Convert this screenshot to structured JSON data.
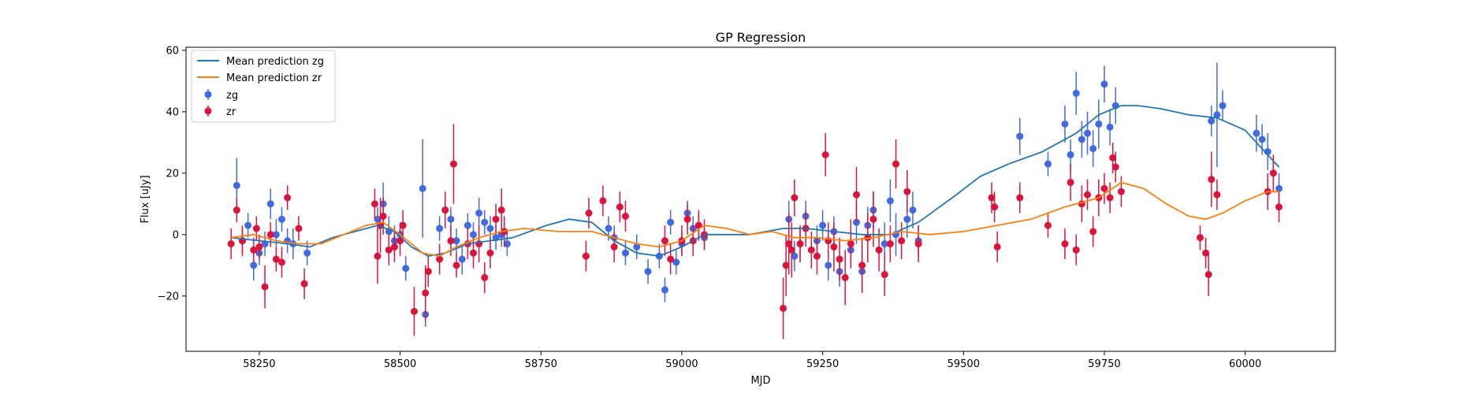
{
  "chart_data": {
    "type": "scatter",
    "title": "GP Regression",
    "xlabel": "MJD",
    "ylabel": "Flux [uJy]",
    "xlim": [
      58120,
      60160
    ],
    "ylim": [
      -38,
      61
    ],
    "xticks": [
      58250,
      58500,
      58750,
      59000,
      59250,
      59500,
      59750,
      60000
    ],
    "yticks": [
      -20,
      0,
      20,
      40,
      60
    ],
    "grid": false,
    "legend_position": "top-left",
    "series": [
      {
        "name": "Mean prediction zg",
        "kind": "line",
        "color": "#1f77b4",
        "x": [
          58200,
          58250,
          58300,
          58340,
          58380,
          58420,
          58460,
          58490,
          58520,
          58550,
          58580,
          58620,
          58660,
          58700,
          58760,
          58800,
          58840,
          58880,
          58920,
          58960,
          59000,
          59040,
          59080,
          59120,
          59180,
          59220,
          59270,
          59320,
          59370,
          59420,
          59480,
          59530,
          59580,
          59640,
          59700,
          59740,
          59780,
          59810,
          59850,
          59900,
          59950,
          60000,
          60040,
          60060
        ],
        "y": [
          -1,
          -2,
          -3,
          -4,
          -1,
          1,
          3,
          1,
          -4,
          -7,
          -6,
          -3,
          -2,
          -1,
          3,
          5,
          4,
          -2,
          -6,
          -7,
          -4,
          0,
          0,
          0,
          2,
          2,
          1,
          0,
          0,
          4,
          12,
          19,
          23,
          27,
          33,
          39,
          42,
          42,
          41,
          39,
          38,
          34,
          26,
          22
        ]
      },
      {
        "name": "Mean prediction zr",
        "kind": "line",
        "color": "#ff7f0e",
        "x": [
          58200,
          58240,
          58280,
          58320,
          58360,
          58400,
          58440,
          58470,
          58500,
          58540,
          58570,
          58600,
          58640,
          58680,
          58720,
          58780,
          58840,
          58880,
          58920,
          58960,
          59000,
          59040,
          59080,
          59120,
          59160,
          59200,
          59240,
          59290,
          59340,
          59390,
          59440,
          59500,
          59560,
          59620,
          59680,
          59740,
          59780,
          59820,
          59860,
          59900,
          59930,
          59960,
          60000,
          60040,
          60060
        ],
        "y": [
          -1,
          0,
          -2,
          -3,
          -3,
          0,
          3,
          4,
          0,
          -6,
          -7,
          -4,
          -1,
          1,
          2,
          1,
          1,
          -1,
          -3,
          -4,
          -2,
          3,
          2,
          0,
          1,
          -1,
          -1,
          -2,
          -1,
          1,
          0,
          1,
          3,
          5,
          9,
          12,
          17,
          15,
          10,
          6,
          5,
          7,
          11,
          14,
          14
        ]
      },
      {
        "name": "zg",
        "kind": "errorbar",
        "color": "#4169e1",
        "x": [
          58210,
          58220,
          58230,
          58240,
          58250,
          58260,
          58270,
          58280,
          58290,
          58300,
          58310,
          58335,
          58460,
          58470,
          58480,
          58490,
          58500,
          58510,
          58540,
          58545,
          58570,
          58580,
          58590,
          58600,
          58610,
          58620,
          58630,
          58640,
          58650,
          58660,
          58670,
          58680,
          58690,
          58870,
          58880,
          58900,
          58920,
          58940,
          58960,
          58970,
          58980,
          58990,
          59000,
          59010,
          59020,
          59030,
          59040,
          59190,
          59200,
          59210,
          59220,
          59240,
          59250,
          59260,
          59270,
          59280,
          59300,
          59310,
          59320,
          59330,
          59340,
          59360,
          59370,
          59380,
          59400,
          59410,
          59420,
          59600,
          59650,
          59680,
          59690,
          59700,
          59710,
          59720,
          59730,
          59740,
          59750,
          59760,
          59770,
          59940,
          59950,
          59960,
          60020,
          60030,
          60040,
          60050,
          60060
        ],
        "y": [
          16,
          -2,
          3,
          -10,
          -6,
          -3,
          10,
          0,
          5,
          -2,
          -3,
          -6,
          5,
          10,
          1,
          -2,
          0,
          -11,
          15,
          -26,
          2,
          8,
          5,
          -2,
          -8,
          3,
          0,
          7,
          4,
          2,
          -1,
          0,
          -3,
          2,
          -1,
          -6,
          -4,
          -12,
          -7,
          -18,
          4,
          -9,
          -3,
          7,
          2,
          3,
          -1,
          5,
          -7,
          -3,
          6,
          -2,
          3,
          -10,
          1,
          -12,
          -5,
          4,
          -12,
          3,
          8,
          -3,
          11,
          0,
          5,
          8,
          -2,
          32,
          23,
          36,
          26,
          46,
          31,
          33,
          28,
          36,
          49,
          35,
          42,
          37,
          39,
          42,
          33,
          31,
          27,
          20,
          15
        ],
        "yerr": [
          9,
          4,
          4,
          5,
          4,
          4,
          5,
          5,
          4,
          4,
          5,
          4,
          4,
          7,
          5,
          5,
          4,
          4,
          16,
          4,
          4,
          5,
          4,
          4,
          5,
          4,
          4,
          5,
          4,
          4,
          4,
          4,
          4,
          4,
          4,
          4,
          4,
          4,
          4,
          4,
          4,
          4,
          4,
          4,
          4,
          4,
          4,
          6,
          5,
          5,
          5,
          5,
          5,
          5,
          5,
          5,
          5,
          7,
          6,
          6,
          6,
          7,
          7,
          7,
          6,
          6,
          5,
          6,
          4,
          6,
          5,
          7,
          6,
          7,
          6,
          8,
          6,
          6,
          6,
          5,
          17,
          5,
          6,
          5,
          6,
          5,
          5
        ]
      },
      {
        "name": "zr",
        "kind": "errorbar",
        "color": "#dc143c",
        "x": [
          58200,
          58210,
          58220,
          58240,
          58245,
          58250,
          58260,
          58270,
          58280,
          58290,
          58300,
          58320,
          58330,
          58455,
          58460,
          58465,
          58470,
          58480,
          58490,
          58500,
          58505,
          58525,
          58545,
          58550,
          58570,
          58580,
          58590,
          58595,
          58600,
          58620,
          58630,
          58640,
          58650,
          58660,
          58670,
          58680,
          58685,
          58830,
          58835,
          58860,
          58880,
          58890,
          58900,
          58970,
          58980,
          59000,
          59010,
          59020,
          59030,
          59040,
          59180,
          59185,
          59190,
          59195,
          59200,
          59210,
          59220,
          59230,
          59240,
          59255,
          59260,
          59270,
          59280,
          59290,
          59300,
          59310,
          59320,
          59330,
          59340,
          59350,
          59360,
          59370,
          59380,
          59390,
          59400,
          59420,
          59550,
          59555,
          59560,
          59600,
          59650,
          59680,
          59690,
          59700,
          59710,
          59720,
          59730,
          59740,
          59750,
          59760,
          59765,
          59770,
          59780,
          59920,
          59930,
          59935,
          59940,
          59950,
          60040,
          60050,
          60060
        ],
        "y": [
          -3,
          8,
          -2,
          -5,
          2,
          -4,
          -17,
          0,
          -8,
          -9,
          12,
          2,
          -16,
          10,
          -7,
          3,
          6,
          -5,
          -4,
          -2,
          3,
          -25,
          -19,
          -12,
          -8,
          8,
          -2,
          23,
          -10,
          -3,
          -6,
          -3,
          -14,
          -6,
          5,
          8,
          1,
          -7,
          7,
          11,
          -4,
          9,
          6,
          -2,
          -8,
          -2,
          5,
          -2,
          3,
          0,
          -24,
          -10,
          -3,
          -5,
          12,
          -3,
          2,
          -5,
          -7,
          26,
          -2,
          -4,
          -8,
          -14,
          -3,
          13,
          -10,
          -1,
          5,
          -5,
          -13,
          -3,
          23,
          -2,
          14,
          -3,
          12,
          9,
          -4,
          12,
          3,
          -3,
          17,
          -5,
          10,
          13,
          1,
          12,
          15,
          12,
          25,
          22,
          14,
          -1,
          -6,
          -13,
          18,
          13,
          14,
          20,
          9
        ],
        "yerr": [
          5,
          4,
          5,
          4,
          4,
          4,
          7,
          4,
          4,
          5,
          4,
          4,
          5,
          5,
          9,
          9,
          6,
          5,
          5,
          5,
          5,
          8,
          9,
          5,
          5,
          6,
          5,
          13,
          4,
          5,
          5,
          6,
          5,
          5,
          5,
          7,
          5,
          5,
          5,
          5,
          5,
          5,
          5,
          5,
          5,
          5,
          5,
          5,
          5,
          5,
          10,
          10,
          10,
          9,
          6,
          6,
          6,
          6,
          6,
          7,
          6,
          8,
          7,
          9,
          8,
          9,
          9,
          8,
          9,
          7,
          7,
          6,
          8,
          6,
          7,
          6,
          5,
          5,
          5,
          5,
          4,
          5,
          6,
          5,
          6,
          5,
          5,
          6,
          5,
          5,
          5,
          5,
          5,
          4,
          5,
          7,
          9,
          5,
          6,
          6,
          5
        ]
      }
    ]
  }
}
